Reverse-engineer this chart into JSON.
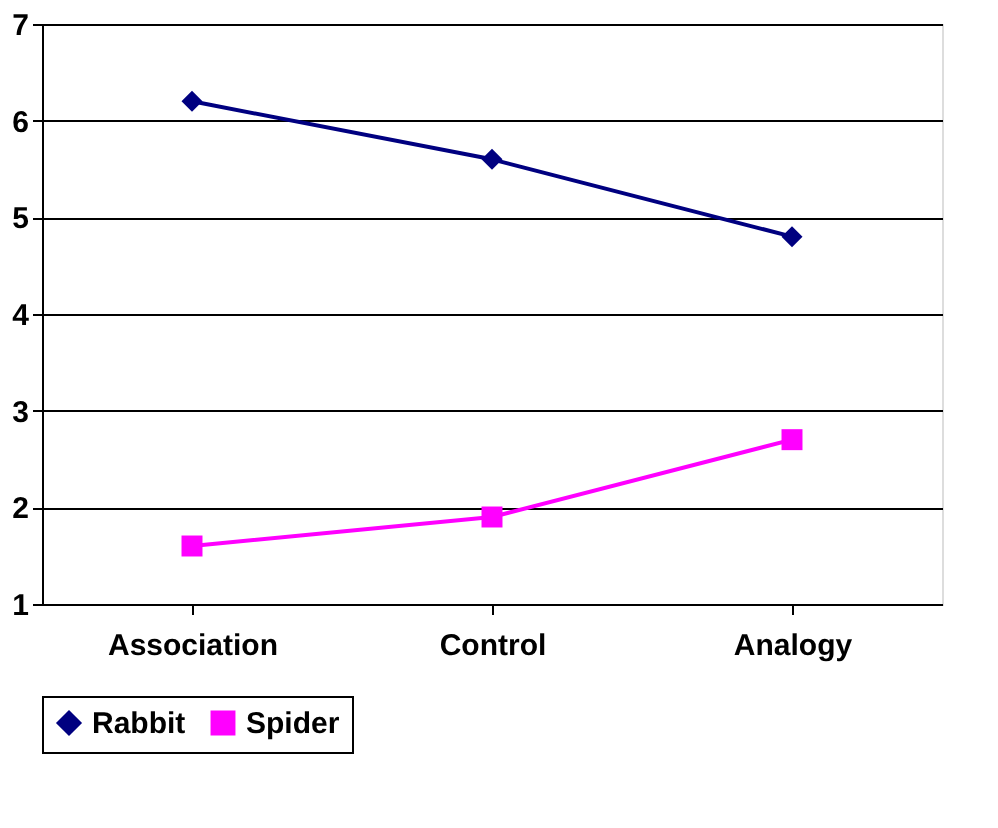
{
  "chart_data": {
    "type": "line",
    "categories": [
      "Association",
      "Control",
      "Analogy"
    ],
    "series": [
      {
        "name": "Rabbit",
        "color": "#000080",
        "values": [
          6.2,
          5.6,
          4.8
        ],
        "marker": "diamond"
      },
      {
        "name": "Spider",
        "color": "#ff00ff",
        "values": [
          1.6,
          1.9,
          2.7
        ],
        "marker": "square"
      }
    ],
    "ylim": [
      1,
      7
    ],
    "yticks": [
      1,
      2,
      3,
      4,
      5,
      6,
      7
    ],
    "grid": "y",
    "legend": "bottom"
  }
}
